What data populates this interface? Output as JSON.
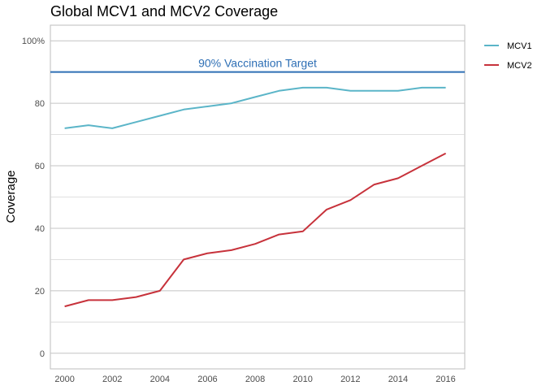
{
  "chart_data": {
    "type": "line",
    "title": "Global MCV1 and MCV2 Coverage",
    "xlabel": "",
    "ylabel": "Coverage",
    "x": [
      2000,
      2001,
      2002,
      2003,
      2004,
      2005,
      2006,
      2007,
      2008,
      2009,
      2010,
      2011,
      2012,
      2013,
      2014,
      2015,
      2016
    ],
    "xlim": [
      1999.4,
      2016.8
    ],
    "ylim": [
      -5,
      105
    ],
    "x_ticks": [
      "2000",
      "2002",
      "2004",
      "2006",
      "2008",
      "2010",
      "2012",
      "2014",
      "2016"
    ],
    "y_ticks": [
      "0",
      "20",
      "40",
      "60",
      "80",
      "100%"
    ],
    "grid": true,
    "legend_position": "right",
    "series": [
      {
        "name": "MCV1",
        "color": "#5bb5c8",
        "values": [
          72,
          73,
          72,
          74,
          76,
          78,
          79,
          80,
          82,
          84,
          85,
          85,
          84,
          84,
          84,
          85,
          85
        ]
      },
      {
        "name": "MCV2",
        "color": "#c7323b",
        "values": [
          15,
          17,
          17,
          18,
          20,
          30,
          32,
          33,
          35,
          38,
          39,
          46,
          49,
          54,
          56,
          60,
          64
        ]
      }
    ],
    "reference_line": {
      "value": 90,
      "label": "90% Vaccination Target",
      "color": "#2e6fb5"
    }
  }
}
